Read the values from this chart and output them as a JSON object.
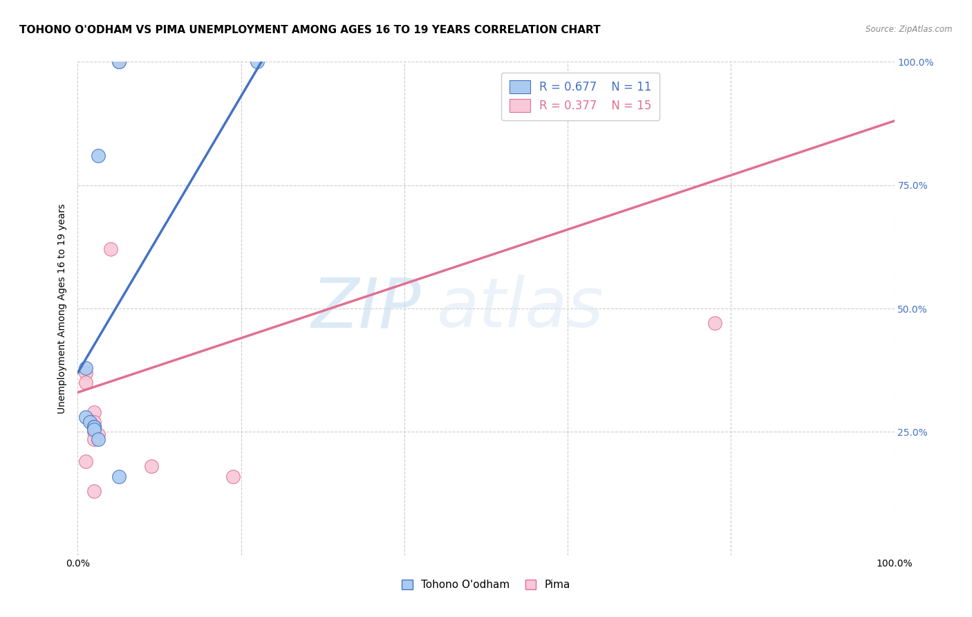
{
  "title": "TOHONO O'ODHAM VS PIMA UNEMPLOYMENT AMONG AGES 16 TO 19 YEARS CORRELATION CHART",
  "source": "Source: ZipAtlas.com",
  "ylabel": "Unemployment Among Ages 16 to 19 years",
  "xlim": [
    0,
    1
  ],
  "ylim": [
    0,
    1
  ],
  "xticks": [
    0.0,
    0.2,
    0.4,
    0.6,
    0.8,
    1.0
  ],
  "yticks": [
    0.0,
    0.25,
    0.5,
    0.75,
    1.0
  ],
  "xticklabels": [
    "0.0%",
    "",
    "",
    "",
    "",
    "100.0%"
  ],
  "right_yticklabels": [
    "",
    "25.0%",
    "50.0%",
    "75.0%",
    "100.0%"
  ],
  "blue_scatter_x": [
    0.05,
    0.025,
    0.22,
    0.01,
    0.01,
    0.015,
    0.02,
    0.02,
    0.02,
    0.025,
    0.05
  ],
  "blue_scatter_y": [
    1.0,
    0.81,
    1.0,
    0.38,
    0.28,
    0.27,
    0.26,
    0.26,
    0.255,
    0.235,
    0.16
  ],
  "pink_scatter_x": [
    0.05,
    0.04,
    0.01,
    0.01,
    0.02,
    0.02,
    0.02,
    0.02,
    0.025,
    0.02,
    0.01,
    0.09,
    0.78,
    0.19,
    0.02
  ],
  "pink_scatter_y": [
    1.0,
    0.62,
    0.37,
    0.35,
    0.29,
    0.27,
    0.26,
    0.25,
    0.245,
    0.235,
    0.19,
    0.18,
    0.47,
    0.16,
    0.13
  ],
  "blue_line_x": [
    0.0,
    0.225
  ],
  "blue_line_y": [
    0.37,
    1.0
  ],
  "pink_line_x": [
    0.0,
    1.0
  ],
  "pink_line_y": [
    0.33,
    0.88
  ],
  "blue_fill_color": "#aacbf0",
  "pink_fill_color": "#f8c8d8",
  "blue_edge_color": "#4472c4",
  "pink_edge_color": "#e07090",
  "legend_blue_R": "0.677",
  "legend_blue_N": "11",
  "legend_pink_R": "0.377",
  "legend_pink_N": "15",
  "legend_label_blue": "Tohono O'odham",
  "legend_label_pink": "Pima",
  "background_color": "#ffffff",
  "grid_color": "#cccccc",
  "right_tick_color": "#4472c4",
  "title_fontsize": 11,
  "axis_label_fontsize": 10,
  "tick_fontsize": 10
}
